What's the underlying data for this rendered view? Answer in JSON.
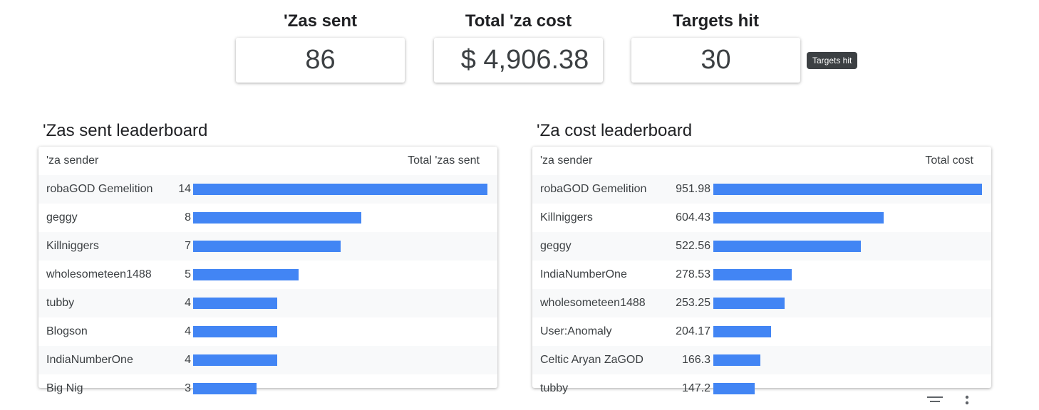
{
  "kpis": [
    {
      "title": "'Zas sent",
      "value": "86"
    },
    {
      "title": "Total 'za cost",
      "value": "$ 4,906.38"
    },
    {
      "title": "Targets hit",
      "value": "30"
    }
  ],
  "tooltip": "Targets hit",
  "leaderboards": [
    {
      "title": "'Zas sent leaderboard",
      "col_name": "'za sender",
      "col_value": "Total 'zas sent",
      "max": 14,
      "rows": [
        [
          "robaGOD Gemelition",
          14
        ],
        [
          "geggy",
          8
        ],
        [
          "Killniggers",
          7
        ],
        [
          "wholesometeen1488",
          5
        ],
        [
          "tubby",
          4
        ],
        [
          "Blogson",
          4
        ],
        [
          "IndiaNumberOne",
          4
        ],
        [
          "Big Nig",
          3
        ]
      ]
    },
    {
      "title": "'Za cost leaderboard",
      "col_name": "'za sender",
      "col_value": "Total cost",
      "max": 951.98,
      "rows": [
        [
          "robaGOD Gemelition",
          951.98
        ],
        [
          "Killniggers",
          604.43
        ],
        [
          "geggy",
          522.56
        ],
        [
          "IndiaNumberOne",
          278.53
        ],
        [
          "wholesometeen1488",
          253.25
        ],
        [
          "User:Anomaly",
          204.17
        ],
        [
          "Celtic Aryan ZaGOD",
          166.3
        ],
        [
          "tubby",
          147.2
        ]
      ]
    }
  ],
  "colors": {
    "bar": "#4285f4"
  }
}
